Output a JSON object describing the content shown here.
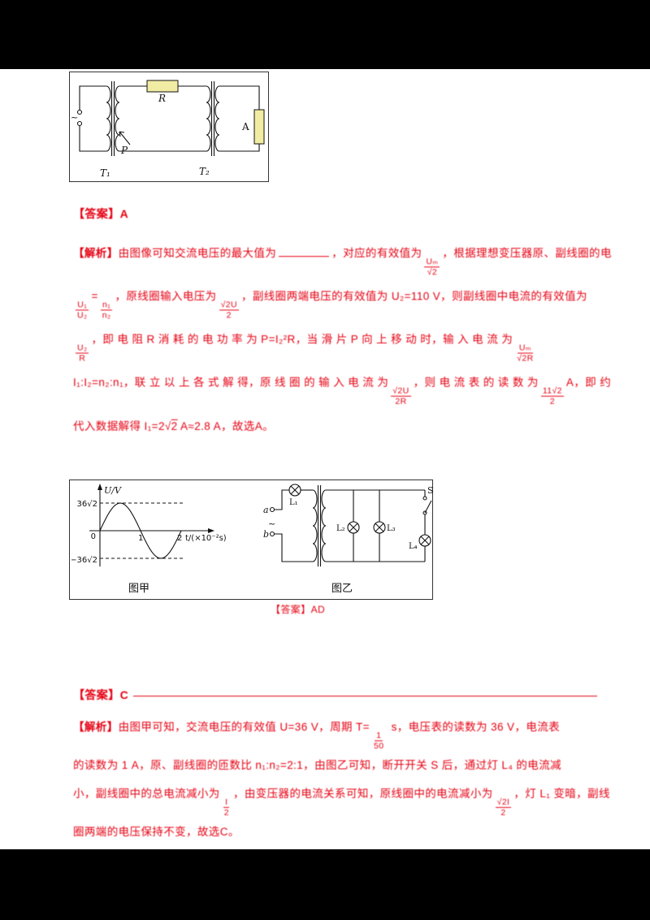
{
  "page": {
    "background": "#000000",
    "paper_color": "#ffffff"
  },
  "figure1": {
    "component_color": "#f1ecA3",
    "labels": {
      "ac": "~",
      "R": "R",
      "P": "P",
      "T1": "T₁",
      "T2": "T₂",
      "A": "A"
    }
  },
  "block1": {
    "heading": "【答案】A",
    "lines": [
      [
        {
          "b": "【解析】"
        },
        {
          "x": "由图像可知交流电压的最大值为"
        },
        {
          "u": 1
        },
        {
          "x": "，对应的有效值为"
        },
        {
          "f": {
            "n": "Uₘ",
            "d": "√2"
          }
        },
        {
          "x": "，根据理想变压器原、副线圈的电压关系"
        }
      ],
      [
        {
          "f": {
            "n": "U₁",
            "d": "U₂"
          }
        },
        {
          "x": "="
        },
        {
          "f": {
            "n": "n₁",
            "d": "n₂"
          }
        },
        {
          "x": "，原线圈输入电压为"
        },
        {
          "f": {
            "n": "√2U",
            "d": "2"
          }
        },
        {
          "x": "，副线圈两端电压的有效值为 U₂=110 V，则副线圈中电流的有效值为"
        }
      ],
      [
        {
          "f": {
            "n": "U₂",
            "d": "R"
          }
        },
        {
          "x": "，即 电 阻 R 消 耗 的 电 功 率 为 P=I₂²R，当 滑 片 P 向 上 移 动 时，输 入 电 流 为"
        },
        {
          "f": {
            "n": "Uₘ",
            "d": "√2R"
          }
        }
      ],
      [
        {
          "x": "I₁:I₂=n₂:n₁，联 立 以 上 各 式 解 得，原 线 圈 的 输 入 电 流 为"
        },
        {
          "f": {
            "n": "√2U",
            "d": "2R"
          }
        },
        {
          "x": "，则 电 流 表 的 读 数 为"
        },
        {
          "f": {
            "n": "11√2",
            "d": "2"
          }
        },
        {
          "x": "A，即 约 为"
        }
      ],
      [
        {
          "x": "代入数据解得 I₁=2"
        },
        {
          "s": "2"
        },
        {
          "x": " A≈2.8 A，故选A。"
        }
      ]
    ]
  },
  "figure2": {
    "caption_left": "图甲",
    "caption_right": "图乙",
    "answer_caption": "【答案】AD",
    "circuit_labels": {
      "a": "a",
      "b": "b",
      "ac": "~",
      "L1": "L₁",
      "L2": "L₂",
      "L3": "L₃",
      "L4": "L₄",
      "S": "S"
    }
  },
  "chart_data": {
    "type": "line",
    "title": "图甲",
    "xlabel": "t/(×10⁻²s)",
    "ylabel": "U/V",
    "y_tick_labels": [
      "36√2",
      "0",
      "−36√2"
    ],
    "x_tick_labels": [
      "1",
      "2"
    ],
    "amplitude_V": 50.9,
    "amplitude_label": "36√2",
    "rms_V": 36,
    "period_units": 2,
    "period_s": 0.02,
    "x_unit": "×10⁻² s",
    "guide_lines": [
      "36√2",
      "−36√2"
    ],
    "curve_color": "#c4385a",
    "dash_color": "#7fd4ef",
    "x": [
      0,
      0.25,
      0.5,
      0.75,
      1,
      1.25,
      1.5,
      1.75,
      2
    ],
    "y": [
      0,
      36,
      50.9,
      36,
      0,
      -36,
      -50.9,
      -36,
      0
    ]
  },
  "block2": {
    "heading": "【答案】C",
    "lines": [
      [
        {
          "b": "【解析】"
        },
        {
          "x": "由图甲可知，交流电压的有效值 U=36 V，周期 T="
        },
        {
          "f": {
            "n": "1",
            "d": "50"
          }
        },
        {
          "x": " s，电压表的读数为 36 V，电流表"
        }
      ],
      [
        {
          "x": "的读数为 1 A，原、副线圈的匝数比 n₁:n₂=2:1，由图乙可知，断开开关 S 后，通过灯 L₄ 的电流减"
        }
      ],
      [
        {
          "x": "小，副线圈中的总电流减小为"
        },
        {
          "f": {
            "n": "I",
            "d": "2"
          }
        },
        {
          "x": "，由变压器的电流关系可知，原线圈中的电流减小为"
        },
        {
          "f": {
            "n": "√2I",
            "d": "2"
          }
        },
        {
          "x": "，灯 L₁ 变暗，副线"
        }
      ],
      [
        {
          "x": "圈两端的电压保持不变，故选C。"
        }
      ]
    ]
  }
}
